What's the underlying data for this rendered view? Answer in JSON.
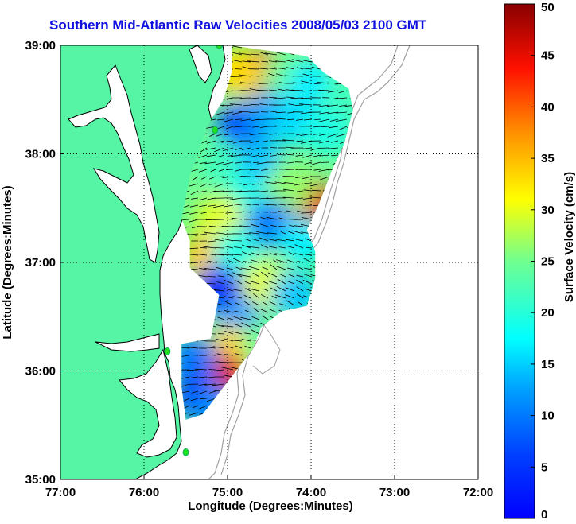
{
  "title": "Southern Mid-Atlantic Raw Velocities 2008/05/03 2100 GMT",
  "xlabel": "Longitude (Degrees:Minutes)",
  "ylabel": "Latitude (Degrees:Minutes)",
  "colorbar_label": "Surface Velocity (cm/s)",
  "x_ticks": [
    "77:00",
    "76:00",
    "75:00",
    "74:00",
    "73:00",
    "72:00"
  ],
  "y_ticks": [
    "39:00",
    "38:00",
    "37:00",
    "36:00",
    "35:00"
  ],
  "colorbar_ticks": [
    "50",
    "45",
    "40",
    "35",
    "30",
    "25",
    "20",
    "15",
    "10",
    "5",
    "0"
  ],
  "colors": {
    "title": "#1010e0",
    "land": "#55f5a5",
    "water": "#ffffff",
    "coast": "#000000",
    "bathymetry": "#a0a0a0",
    "station": "#22dd22",
    "grid": "#000000"
  },
  "colormap": "jet",
  "chart_data": {
    "type": "heatmap",
    "title": "Southern Mid-Atlantic Raw Velocities 2008/05/03 2100 GMT",
    "xlabel": "Longitude (Degrees:Minutes)",
    "ylabel": "Latitude (Degrees:Minutes)",
    "xlim": [
      -77,
      -72
    ],
    "ylim": [
      35,
      39
    ],
    "clim": [
      0,
      50
    ],
    "colorbar_label": "Surface Velocity (cm/s)",
    "grid": true,
    "regions": [
      {
        "lon": -74.6,
        "lat": 38.75,
        "speed": 40
      },
      {
        "lon": -74.9,
        "lat": 38.75,
        "speed": 33
      },
      {
        "lon": -74.3,
        "lat": 38.7,
        "speed": 24
      },
      {
        "lon": -74.0,
        "lat": 38.65,
        "speed": 18
      },
      {
        "lon": -73.6,
        "lat": 38.5,
        "speed": 22
      },
      {
        "lon": -74.85,
        "lat": 38.25,
        "speed": 10
      },
      {
        "lon": -74.5,
        "lat": 38.35,
        "speed": 14
      },
      {
        "lon": -74.2,
        "lat": 38.3,
        "speed": 17
      },
      {
        "lon": -73.8,
        "lat": 38.2,
        "speed": 20
      },
      {
        "lon": -75.05,
        "lat": 37.9,
        "speed": 22
      },
      {
        "lon": -74.6,
        "lat": 37.9,
        "speed": 16
      },
      {
        "lon": -74.0,
        "lat": 37.55,
        "speed": 45
      },
      {
        "lon": -74.25,
        "lat": 37.7,
        "speed": 26
      },
      {
        "lon": -74.8,
        "lat": 37.55,
        "speed": 20
      },
      {
        "lon": -75.1,
        "lat": 37.4,
        "speed": 30
      },
      {
        "lon": -74.5,
        "lat": 37.35,
        "speed": 12
      },
      {
        "lon": -74.1,
        "lat": 37.2,
        "speed": 18
      },
      {
        "lon": -75.25,
        "lat": 37.05,
        "speed": 34
      },
      {
        "lon": -74.9,
        "lat": 37.1,
        "speed": 20
      },
      {
        "lon": -75.1,
        "lat": 36.75,
        "speed": 8
      },
      {
        "lon": -74.55,
        "lat": 36.8,
        "speed": 30
      },
      {
        "lon": -74.2,
        "lat": 36.7,
        "speed": 16
      },
      {
        "lon": -74.85,
        "lat": 36.45,
        "speed": 14
      },
      {
        "lon": -74.95,
        "lat": 36.2,
        "speed": 33
      },
      {
        "lon": -74.55,
        "lat": 36.25,
        "speed": 24
      },
      {
        "lon": -75.05,
        "lat": 35.95,
        "speed": 45
      },
      {
        "lon": -75.4,
        "lat": 36.1,
        "speed": 12
      },
      {
        "lon": -75.35,
        "lat": 35.75,
        "speed": 9
      },
      {
        "lon": -75.15,
        "lat": 35.65,
        "speed": 13
      }
    ],
    "stations": [
      {
        "lon": -75.1,
        "lat": 39.0
      },
      {
        "lon": -75.15,
        "lat": 38.22
      },
      {
        "lon": -75.72,
        "lat": 36.18
      },
      {
        "lon": -75.5,
        "lat": 35.25
      }
    ]
  }
}
